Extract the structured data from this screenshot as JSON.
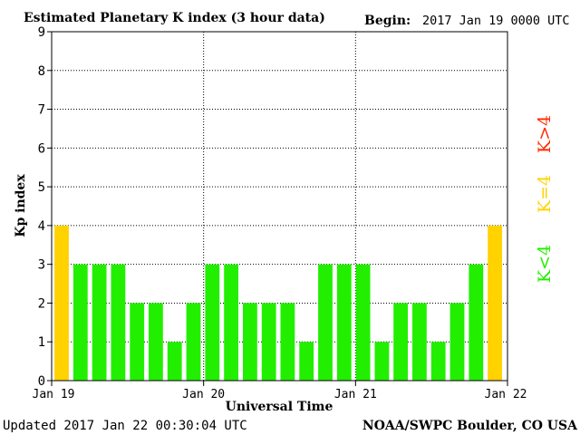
{
  "header": {
    "title": "Estimated Planetary K index (3 hour data)",
    "begin_label": "Begin:",
    "begin_value": "2017 Jan 19 0000 UTC"
  },
  "footer": {
    "updated": "Updated 2017 Jan 22 00:30:04 UTC",
    "source": "NOAA/SWPC Boulder, CO USA"
  },
  "legend": {
    "high": "K>4",
    "equal": "K=4",
    "low": "K<4"
  },
  "colors": {
    "low": "#22ee00",
    "equal": "#ffd200",
    "high": "#ff2a00"
  },
  "chart_data": {
    "type": "bar",
    "title": "Estimated Planetary K index (3 hour data)",
    "xlabel": "Universal Time",
    "ylabel": "Kp index",
    "ylim": [
      0,
      9
    ],
    "yticks": [
      "0",
      "1",
      "2",
      "3",
      "4",
      "5",
      "6",
      "7",
      "8",
      "9"
    ],
    "xticks": [
      "Jan 19",
      "Jan 20",
      "Jan 21",
      "Jan 22"
    ],
    "grid": true,
    "values": [
      4,
      3,
      3,
      3,
      2,
      2,
      1,
      2,
      3,
      3,
      2,
      2,
      2,
      1,
      3,
      3,
      3,
      1,
      2,
      2,
      1,
      2,
      3,
      4
    ]
  }
}
